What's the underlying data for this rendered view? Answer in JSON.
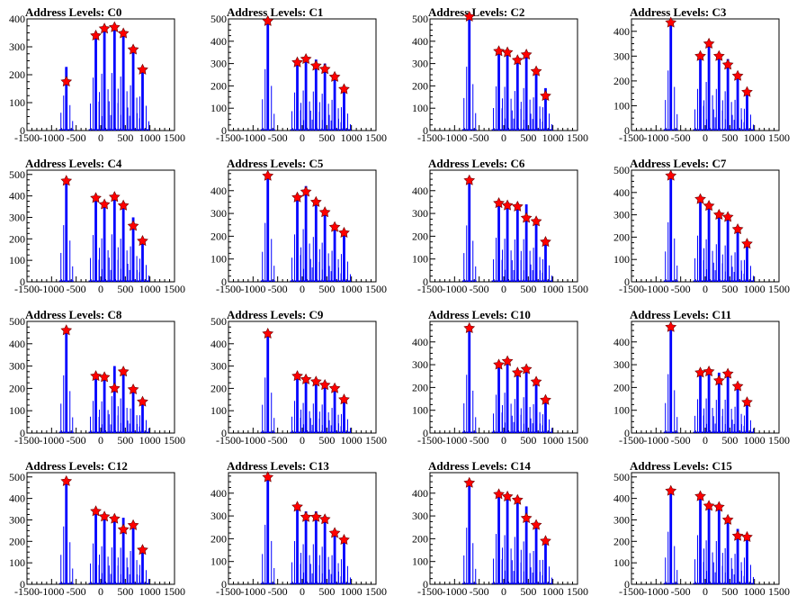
{
  "chart_data": [
    {
      "type": "bar",
      "title": "Address Levels: C0",
      "xlim": [
        -1500,
        1500
      ],
      "ylim": [
        0,
        400
      ],
      "yticks": [
        0,
        100,
        200,
        300,
        400
      ],
      "xticks": [
        -1500,
        -1000,
        -500,
        0,
        500,
        1000,
        1500
      ],
      "xtick_labels": [
        "-1500",
        "-1000",
        "-500",
        "0",
        "500",
        "1000",
        "1500"
      ],
      "peaks": [
        {
          "x": -700,
          "y": 175,
          "fill": 228
        },
        {
          "x": -100,
          "y": 340,
          "fill": 345
        },
        {
          "x": 75,
          "y": 365,
          "fill": 370
        },
        {
          "x": 280,
          "y": 370,
          "fill": 375
        },
        {
          "x": 460,
          "y": 348,
          "fill": 352
        },
        {
          "x": 660,
          "y": 290,
          "fill": 295
        },
        {
          "x": 850,
          "y": 218,
          "fill": 222
        }
      ]
    },
    {
      "type": "bar",
      "title": "Address Levels: C1",
      "xlim": [
        -1500,
        1500
      ],
      "ylim": [
        0,
        500
      ],
      "yticks": [
        0,
        100,
        200,
        300,
        400,
        500
      ],
      "xticks": [
        -1500,
        -1000,
        -500,
        0,
        500,
        1000,
        1500
      ],
      "xtick_labels": [
        "-1500",
        "-1000",
        "-500",
        "0",
        "500",
        "1000",
        "1500"
      ],
      "peaks": [
        {
          "x": -700,
          "y": 490,
          "fill": 500
        },
        {
          "x": -100,
          "y": 305,
          "fill": 310
        },
        {
          "x": 75,
          "y": 320,
          "fill": 326
        },
        {
          "x": 280,
          "y": 290,
          "fill": 318
        },
        {
          "x": 460,
          "y": 275,
          "fill": 300
        },
        {
          "x": 660,
          "y": 240,
          "fill": 250
        },
        {
          "x": 850,
          "y": 185,
          "fill": 190
        }
      ]
    },
    {
      "type": "bar",
      "title": "Address Levels: C2",
      "xlim": [
        -1500,
        1500
      ],
      "ylim": [
        0,
        500
      ],
      "yticks": [
        0,
        100,
        200,
        300,
        400,
        500
      ],
      "xticks": [
        -1500,
        -1000,
        -500,
        0,
        500,
        1000,
        1500
      ],
      "xtick_labels": [
        "-1500",
        "-1000",
        "-500",
        "0",
        "500",
        "1000",
        "1500"
      ],
      "peaks": [
        {
          "x": -700,
          "y": 510,
          "fill": 520
        },
        {
          "x": -100,
          "y": 355,
          "fill": 360
        },
        {
          "x": 75,
          "y": 350,
          "fill": 356
        },
        {
          "x": 280,
          "y": 315,
          "fill": 322
        },
        {
          "x": 460,
          "y": 340,
          "fill": 346
        },
        {
          "x": 660,
          "y": 265,
          "fill": 270
        },
        {
          "x": 850,
          "y": 155,
          "fill": 190
        }
      ]
    },
    {
      "type": "bar",
      "title": "Address Levels: C3",
      "xlim": [
        -1500,
        1500
      ],
      "ylim": [
        0,
        450
      ],
      "yticks": [
        0,
        100,
        200,
        300,
        400
      ],
      "xticks": [
        -1500,
        -1000,
        -500,
        0,
        500,
        1000,
        1500
      ],
      "xtick_labels": [
        "-1500",
        "-1000",
        "-500",
        "0",
        "500",
        "1000",
        "1500"
      ],
      "peaks": [
        {
          "x": -700,
          "y": 435,
          "fill": 440
        },
        {
          "x": -100,
          "y": 300,
          "fill": 305
        },
        {
          "x": 75,
          "y": 350,
          "fill": 356
        },
        {
          "x": 280,
          "y": 300,
          "fill": 305
        },
        {
          "x": 460,
          "y": 265,
          "fill": 288
        },
        {
          "x": 660,
          "y": 220,
          "fill": 225
        },
        {
          "x": 850,
          "y": 155,
          "fill": 160
        }
      ]
    },
    {
      "type": "bar",
      "title": "Address Levels: C4",
      "xlim": [
        -1500,
        1500
      ],
      "ylim": [
        0,
        520
      ],
      "yticks": [
        0,
        100,
        200,
        300,
        400,
        500
      ],
      "xticks": [
        -1500,
        -1000,
        -500,
        0,
        500,
        1000,
        1500
      ],
      "xtick_labels": [
        "-1500",
        "-1000",
        "-500",
        "0",
        "500",
        "1000",
        "1500"
      ],
      "peaks": [
        {
          "x": -700,
          "y": 470,
          "fill": 480
        },
        {
          "x": -100,
          "y": 390,
          "fill": 396
        },
        {
          "x": 75,
          "y": 360,
          "fill": 368
        },
        {
          "x": 280,
          "y": 395,
          "fill": 402
        },
        {
          "x": 460,
          "y": 355,
          "fill": 365
        },
        {
          "x": 660,
          "y": 260,
          "fill": 300
        },
        {
          "x": 850,
          "y": 190,
          "fill": 196
        }
      ]
    },
    {
      "type": "bar",
      "title": "Address Levels: C5",
      "xlim": [
        -1500,
        1500
      ],
      "ylim": [
        0,
        490
      ],
      "yticks": [
        0,
        100,
        200,
        300,
        400
      ],
      "xticks": [
        -1500,
        -1000,
        -500,
        0,
        500,
        1000,
        1500
      ],
      "xtick_labels": [
        "-1500",
        "-1000",
        "-500",
        "0",
        "500",
        "1000",
        "1500"
      ],
      "peaks": [
        {
          "x": -700,
          "y": 465,
          "fill": 470
        },
        {
          "x": -100,
          "y": 370,
          "fill": 378
        },
        {
          "x": 75,
          "y": 395,
          "fill": 420
        },
        {
          "x": 280,
          "y": 350,
          "fill": 358
        },
        {
          "x": 460,
          "y": 305,
          "fill": 312
        },
        {
          "x": 660,
          "y": 240,
          "fill": 248
        },
        {
          "x": 850,
          "y": 215,
          "fill": 222
        }
      ]
    },
    {
      "type": "bar",
      "title": "Address Levels: C6",
      "xlim": [
        -1500,
        1500
      ],
      "ylim": [
        0,
        490
      ],
      "yticks": [
        0,
        100,
        200,
        300,
        400
      ],
      "xticks": [
        -1500,
        -1000,
        -500,
        0,
        500,
        1000,
        1500
      ],
      "xtick_labels": [
        "-1500",
        "-1000",
        "-500",
        "0",
        "500",
        "1000",
        "1500"
      ],
      "peaks": [
        {
          "x": -700,
          "y": 445,
          "fill": 450
        },
        {
          "x": -100,
          "y": 345,
          "fill": 352
        },
        {
          "x": 75,
          "y": 335,
          "fill": 344
        },
        {
          "x": 280,
          "y": 330,
          "fill": 338
        },
        {
          "x": 460,
          "y": 280,
          "fill": 340
        },
        {
          "x": 660,
          "y": 265,
          "fill": 272
        },
        {
          "x": 850,
          "y": 175,
          "fill": 180
        }
      ]
    },
    {
      "type": "bar",
      "title": "Address Levels: C7",
      "xlim": [
        -1500,
        1500
      ],
      "ylim": [
        0,
        500
      ],
      "yticks": [
        0,
        100,
        200,
        300,
        400,
        500
      ],
      "xticks": [
        -1500,
        -1000,
        -500,
        0,
        500,
        1000,
        1500
      ],
      "xtick_labels": [
        "-1500",
        "-1000",
        "-500",
        "0",
        "500",
        "1000",
        "1500"
      ],
      "peaks": [
        {
          "x": -700,
          "y": 475,
          "fill": 485
        },
        {
          "x": -100,
          "y": 370,
          "fill": 376
        },
        {
          "x": 75,
          "y": 340,
          "fill": 346
        },
        {
          "x": 280,
          "y": 300,
          "fill": 306
        },
        {
          "x": 460,
          "y": 290,
          "fill": 296
        },
        {
          "x": 660,
          "y": 235,
          "fill": 240
        },
        {
          "x": 850,
          "y": 170,
          "fill": 178
        }
      ]
    },
    {
      "type": "bar",
      "title": "Address Levels: C8",
      "xlim": [
        -1500,
        1500
      ],
      "ylim": [
        0,
        500
      ],
      "yticks": [
        0,
        100,
        200,
        300,
        400,
        500
      ],
      "xticks": [
        -1500,
        -1000,
        -500,
        0,
        500,
        1000,
        1500
      ],
      "xtick_labels": [
        "-1500",
        "-1000",
        "-500",
        "0",
        "500",
        "1000",
        "1500"
      ],
      "peaks": [
        {
          "x": -700,
          "y": 460,
          "fill": 470
        },
        {
          "x": -100,
          "y": 255,
          "fill": 262
        },
        {
          "x": 75,
          "y": 250,
          "fill": 258
        },
        {
          "x": 280,
          "y": 200,
          "fill": 300
        },
        {
          "x": 460,
          "y": 275,
          "fill": 282
        },
        {
          "x": 660,
          "y": 195,
          "fill": 200
        },
        {
          "x": 850,
          "y": 140,
          "fill": 145
        }
      ]
    },
    {
      "type": "bar",
      "title": "Address Levels: C9",
      "xlim": [
        -1500,
        1500
      ],
      "ylim": [
        0,
        500
      ],
      "yticks": [
        0,
        100,
        200,
        300,
        400,
        500
      ],
      "xticks": [
        -1500,
        -1000,
        -500,
        0,
        500,
        1000,
        1500
      ],
      "xtick_labels": [
        "-1500",
        "-1000",
        "-500",
        "0",
        "500",
        "1000",
        "1500"
      ],
      "peaks": [
        {
          "x": -700,
          "y": 445,
          "fill": 452
        },
        {
          "x": -100,
          "y": 255,
          "fill": 262
        },
        {
          "x": 75,
          "y": 240,
          "fill": 245
        },
        {
          "x": 280,
          "y": 230,
          "fill": 240
        },
        {
          "x": 460,
          "y": 215,
          "fill": 232
        },
        {
          "x": 660,
          "y": 200,
          "fill": 205
        },
        {
          "x": 850,
          "y": 150,
          "fill": 155
        }
      ]
    },
    {
      "type": "bar",
      "title": "Address Levels: C10",
      "xlim": [
        -1500,
        1500
      ],
      "ylim": [
        0,
        490
      ],
      "yticks": [
        0,
        100,
        200,
        300,
        400
      ],
      "xticks": [
        -1500,
        -1000,
        -500,
        0,
        500,
        1000,
        1500
      ],
      "xtick_labels": [
        "-1500",
        "-1000",
        "-500",
        "0",
        "500",
        "1000",
        "1500"
      ],
      "peaks": [
        {
          "x": -700,
          "y": 460,
          "fill": 465
        },
        {
          "x": -100,
          "y": 300,
          "fill": 306
        },
        {
          "x": 75,
          "y": 315,
          "fill": 322
        },
        {
          "x": 280,
          "y": 265,
          "fill": 272
        },
        {
          "x": 460,
          "y": 280,
          "fill": 286
        },
        {
          "x": 660,
          "y": 225,
          "fill": 230
        },
        {
          "x": 850,
          "y": 145,
          "fill": 150
        }
      ]
    },
    {
      "type": "bar",
      "title": "Address Levels: C11",
      "xlim": [
        -1500,
        1500
      ],
      "ylim": [
        0,
        490
      ],
      "yticks": [
        0,
        100,
        200,
        300,
        400
      ],
      "xticks": [
        -1500,
        -1000,
        -500,
        0,
        500,
        1000,
        1500
      ],
      "xtick_labels": [
        "-1500",
        "-1000",
        "-500",
        "0",
        "500",
        "1000",
        "1500"
      ],
      "peaks": [
        {
          "x": -700,
          "y": 465,
          "fill": 470
        },
        {
          "x": -100,
          "y": 265,
          "fill": 270
        },
        {
          "x": 75,
          "y": 270,
          "fill": 276
        },
        {
          "x": 280,
          "y": 230,
          "fill": 265
        },
        {
          "x": 460,
          "y": 260,
          "fill": 266
        },
        {
          "x": 660,
          "y": 205,
          "fill": 210
        },
        {
          "x": 850,
          "y": 135,
          "fill": 140
        }
      ]
    },
    {
      "type": "bar",
      "title": "Address Levels: C12",
      "xlim": [
        -1500,
        1500
      ],
      "ylim": [
        0,
        520
      ],
      "yticks": [
        0,
        100,
        200,
        300,
        400,
        500
      ],
      "xticks": [
        -1500,
        -1000,
        -500,
        0,
        500,
        1000,
        1500
      ],
      "xtick_labels": [
        "-1500",
        "-1000",
        "-500",
        "0",
        "500",
        "1000",
        "1500"
      ],
      "peaks": [
        {
          "x": -700,
          "y": 480,
          "fill": 490
        },
        {
          "x": -100,
          "y": 340,
          "fill": 346
        },
        {
          "x": 75,
          "y": 315,
          "fill": 322
        },
        {
          "x": 280,
          "y": 305,
          "fill": 312
        },
        {
          "x": 460,
          "y": 255,
          "fill": 310
        },
        {
          "x": 660,
          "y": 275,
          "fill": 282
        },
        {
          "x": 850,
          "y": 160,
          "fill": 165
        }
      ]
    },
    {
      "type": "bar",
      "title": "Address Levels: C13",
      "xlim": [
        -1500,
        1500
      ],
      "ylim": [
        0,
        490
      ],
      "yticks": [
        0,
        100,
        200,
        300,
        400
      ],
      "xticks": [
        -1500,
        -1000,
        -500,
        0,
        500,
        1000,
        1500
      ],
      "xtick_labels": [
        "-1500",
        "-1000",
        "-500",
        "0",
        "500",
        "1000",
        "1500"
      ],
      "peaks": [
        {
          "x": -700,
          "y": 470,
          "fill": 475
        },
        {
          "x": -100,
          "y": 340,
          "fill": 345
        },
        {
          "x": 75,
          "y": 295,
          "fill": 320
        },
        {
          "x": 280,
          "y": 295,
          "fill": 320
        },
        {
          "x": 460,
          "y": 285,
          "fill": 300
        },
        {
          "x": 660,
          "y": 225,
          "fill": 232
        },
        {
          "x": 850,
          "y": 195,
          "fill": 200
        }
      ]
    },
    {
      "type": "bar",
      "title": "Address Levels: C14",
      "xlim": [
        -1500,
        1500
      ],
      "ylim": [
        0,
        490
      ],
      "yticks": [
        0,
        100,
        200,
        300,
        400
      ],
      "xticks": [
        -1500,
        -1000,
        -500,
        0,
        500,
        1000,
        1500
      ],
      "xtick_labels": [
        "-1500",
        "-1000",
        "-500",
        "0",
        "500",
        "1000",
        "1500"
      ],
      "peaks": [
        {
          "x": -700,
          "y": 445,
          "fill": 452
        },
        {
          "x": -100,
          "y": 395,
          "fill": 402
        },
        {
          "x": 75,
          "y": 385,
          "fill": 392
        },
        {
          "x": 280,
          "y": 370,
          "fill": 378
        },
        {
          "x": 460,
          "y": 290,
          "fill": 342
        },
        {
          "x": 660,
          "y": 260,
          "fill": 266
        },
        {
          "x": 850,
          "y": 190,
          "fill": 195
        }
      ]
    },
    {
      "type": "bar",
      "title": "Address Levels: C15",
      "xlim": [
        -1500,
        1500
      ],
      "ylim": [
        0,
        520
      ],
      "yticks": [
        0,
        100,
        200,
        300,
        400,
        500
      ],
      "xticks": [
        -1500,
        -1000,
        -500,
        0,
        500,
        1000,
        1500
      ],
      "xtick_labels": [
        "-1500",
        "-1000",
        "-500",
        "0",
        "500",
        "1000",
        "1500"
      ],
      "peaks": [
        {
          "x": -700,
          "y": 435,
          "fill": 445
        },
        {
          "x": -100,
          "y": 410,
          "fill": 416
        },
        {
          "x": 75,
          "y": 365,
          "fill": 372
        },
        {
          "x": 280,
          "y": 360,
          "fill": 366
        },
        {
          "x": 460,
          "y": 300,
          "fill": 306
        },
        {
          "x": 660,
          "y": 225,
          "fill": 258
        },
        {
          "x": 850,
          "y": 220,
          "fill": 226
        }
      ]
    }
  ],
  "colors": {
    "histogram": "#0000ff",
    "marker": "#ff0000",
    "frame": "#000000"
  }
}
